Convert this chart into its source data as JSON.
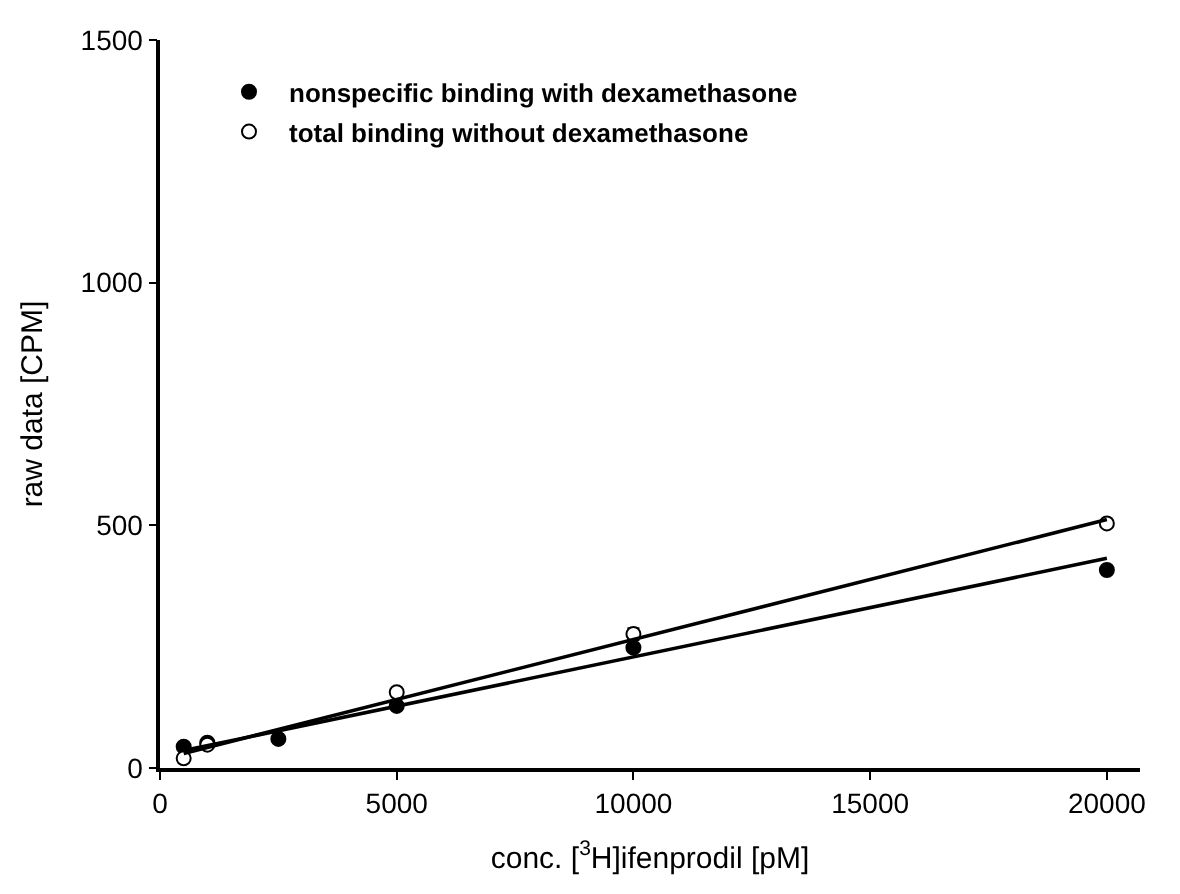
{
  "chart_data": {
    "type": "scatter",
    "xlabel": "conc. [$^{3}$H]ifenprodil [pM]",
    "ylabel": "raw data [CPM]",
    "xlim": [
      0,
      20700
    ],
    "xticks": [
      0,
      5000,
      10000,
      15000,
      20000
    ],
    "ylim": [
      0,
      1500
    ],
    "yticks": [
      0,
      500,
      1000,
      1500
    ],
    "legend": "top left",
    "marker": "circle",
    "series": [
      {
        "name": "nonspecific binding with dexamethasone",
        "color": "#000000",
        "x": [
          500,
          1000,
          2500,
          5000,
          10000,
          20000
        ],
        "values": [
          44,
          52,
          60,
          128,
          248,
          408
        ]
      },
      {
        "name": "total binding without dexamethasone",
        "color": "#ffffff",
        "x": [
          500,
          1000,
          5000,
          10000,
          20000
        ],
        "values": [
          20,
          48,
          156,
          276,
          504
        ],
        "errors": [
          null,
          null,
          null,
          12,
          null
        ]
      },
      {
        "type": "line",
        "color": "#000000",
        "marker": "none",
        "x": [
          500,
          20000
        ],
        "values": [
          36,
          432
        ]
      },
      {
        "type": "line",
        "color": "#000000",
        "marker": "none",
        "x": [
          500,
          20000
        ],
        "values": [
          30,
          512
        ]
      }
    ]
  }
}
